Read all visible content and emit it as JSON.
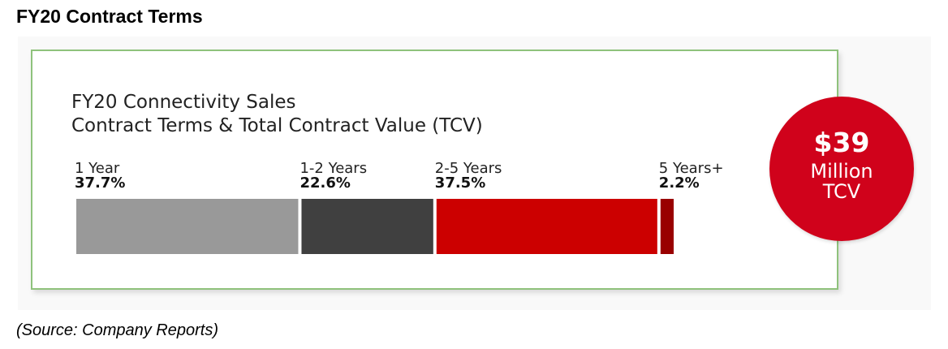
{
  "page_title": "FY20 Contract Terms",
  "source": "(Source: Company Reports)",
  "badge": {
    "value": "$39",
    "line1": "Million",
    "line2": "TCV",
    "color": "#d0021b"
  },
  "chart_data": {
    "type": "bar",
    "orientation": "horizontal-stacked",
    "title_lines": [
      "FY20 Connectivity Sales",
      "Contract Terms & Total Contract Value (TCV)"
    ],
    "categories": [
      "1 Year",
      "1-2 Years",
      "2-5 Years",
      "5 Years+"
    ],
    "values": [
      37.7,
      22.6,
      37.5,
      2.2
    ],
    "value_labels": [
      "37.7%",
      "22.6%",
      "37.5%",
      "2.2%"
    ],
    "colors": [
      "#999999",
      "#404040",
      "#cc0000",
      "#990000"
    ],
    "unit": "%",
    "legend": "none",
    "grid": false
  }
}
